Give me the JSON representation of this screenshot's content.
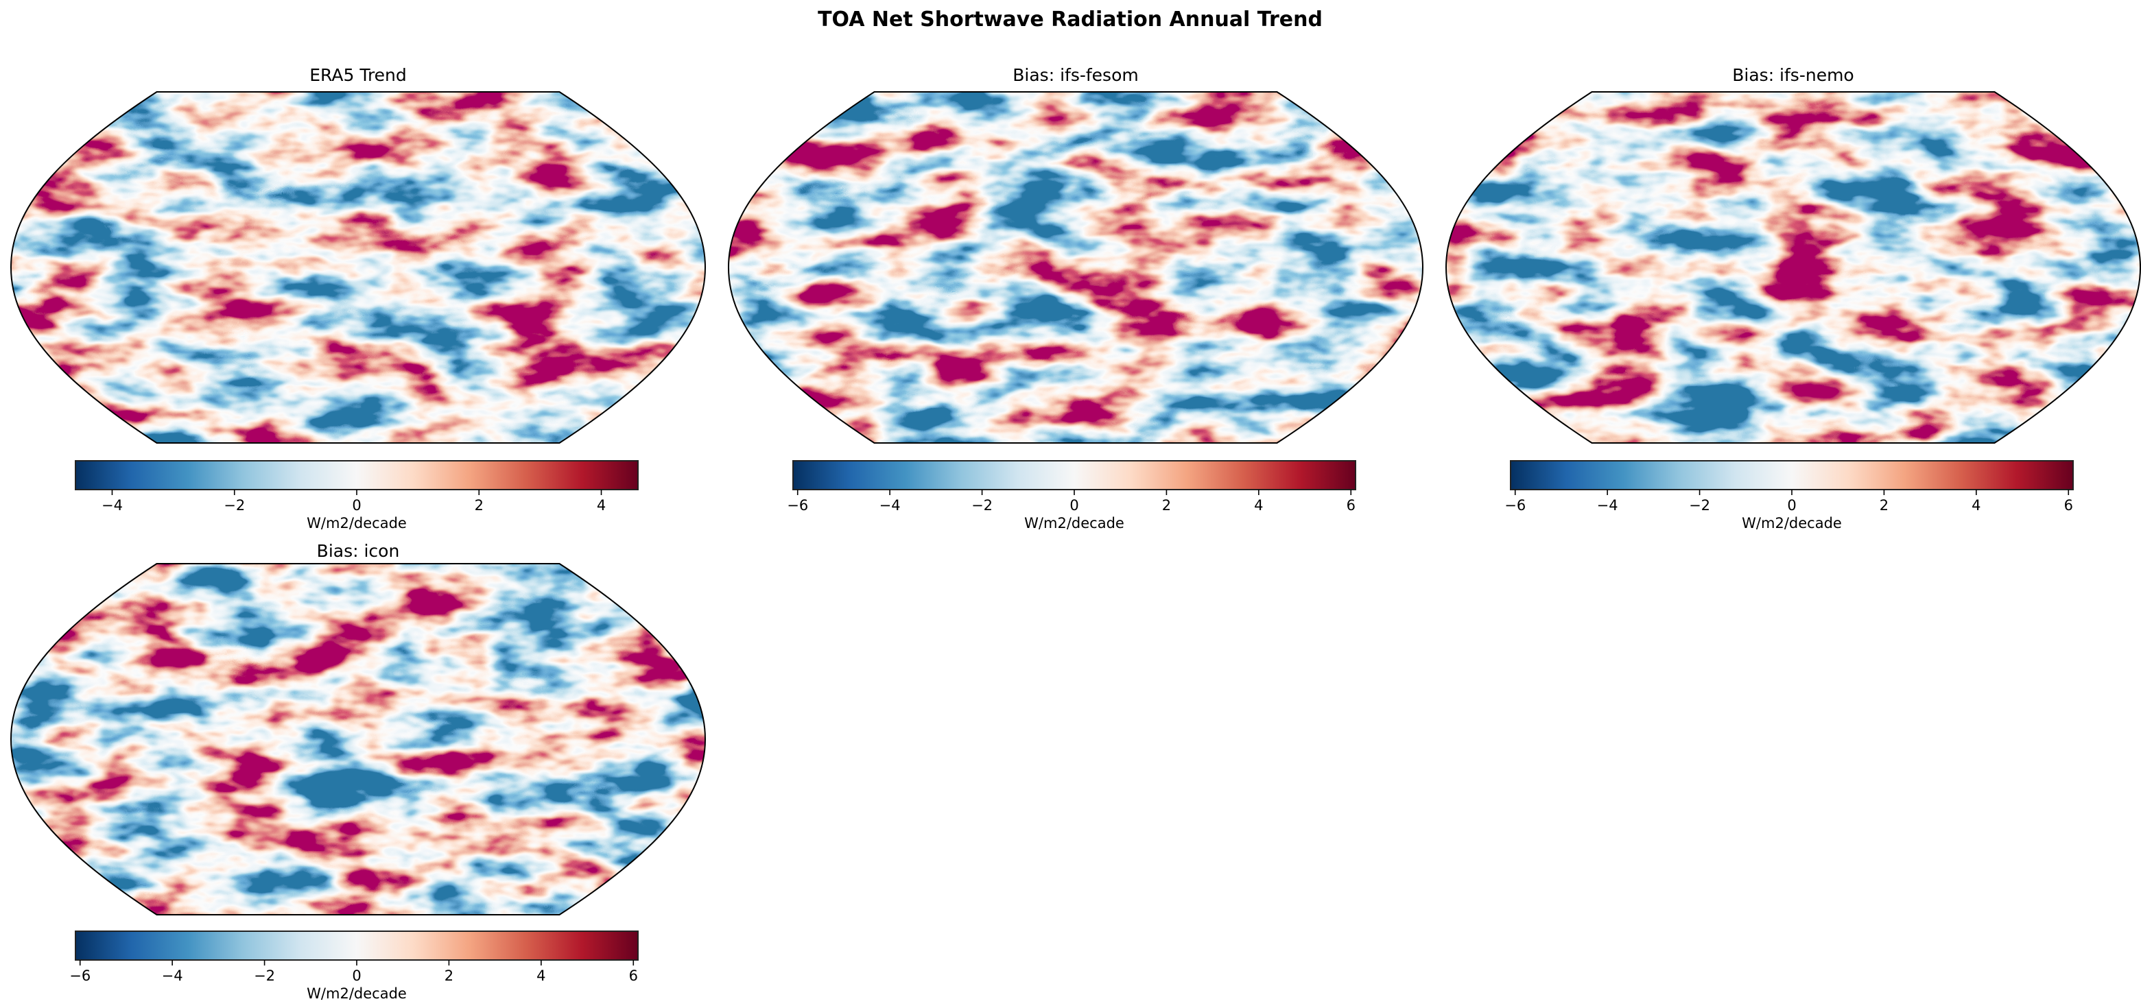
{
  "figure": {
    "title": "TOA Net Shortwave Radiation Annual Trend"
  },
  "colormap": {
    "name": "RdBu_r",
    "stops": [
      "#053061",
      "#2166ac",
      "#4393c3",
      "#92c5de",
      "#d1e5f0",
      "#f7f7f7",
      "#fddbc7",
      "#f4a582",
      "#d6604d",
      "#b2182b",
      "#67001f"
    ]
  },
  "chart_data": [
    {
      "type": "heatmap",
      "projection": "Robinson",
      "title": "ERA5 Trend",
      "colorbar": {
        "label": "W/m2/decade",
        "range": [
          -4.6,
          4.6
        ],
        "ticks": [
          -4,
          -2,
          0,
          2,
          4
        ],
        "tick_labels": [
          "−4",
          "−2",
          "0",
          "2",
          "4"
        ]
      }
    },
    {
      "type": "heatmap",
      "projection": "Robinson",
      "title": "Bias: ifs-fesom",
      "colorbar": {
        "label": "W/m2/decade",
        "range": [
          -6.1,
          6.1
        ],
        "ticks": [
          -6,
          -4,
          -2,
          0,
          2,
          4,
          6
        ],
        "tick_labels": [
          "−6",
          "−4",
          "−2",
          "0",
          "2",
          "4",
          "6"
        ]
      }
    },
    {
      "type": "heatmap",
      "projection": "Robinson",
      "title": "Bias: ifs-nemo",
      "colorbar": {
        "label": "W/m2/decade",
        "range": [
          -6.1,
          6.1
        ],
        "ticks": [
          -6,
          -4,
          -2,
          0,
          2,
          4,
          6
        ],
        "tick_labels": [
          "−6",
          "−4",
          "−2",
          "0",
          "2",
          "4",
          "6"
        ]
      }
    },
    {
      "type": "heatmap",
      "projection": "Robinson",
      "title": "Bias: icon",
      "colorbar": {
        "label": "W/m2/decade",
        "range": [
          -6.1,
          6.1
        ],
        "ticks": [
          -6,
          -4,
          -2,
          0,
          2,
          4,
          6
        ],
        "tick_labels": [
          "−6",
          "−4",
          "−2",
          "0",
          "2",
          "4",
          "6"
        ]
      }
    }
  ]
}
